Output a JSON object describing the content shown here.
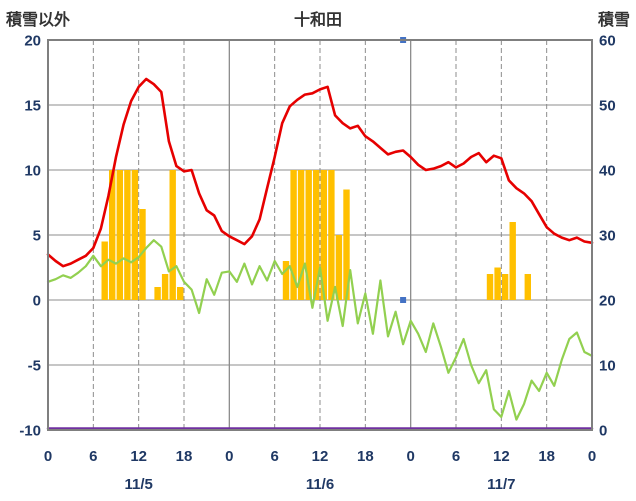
{
  "header": {
    "left_label": "積雪以外",
    "title": "十和田",
    "right_label": "積雪"
  },
  "chart_data": {
    "type": "line+bar",
    "title": "十和田",
    "grid": true,
    "style": {
      "grid_color": "#8c8c8c",
      "border_color": "#7f7f7f",
      "tick_color": "#1f3864",
      "background": "#ffffff"
    },
    "left_axis": {
      "label": "積雪以外",
      "min": -10,
      "max": 20,
      "ticks": [
        20,
        15,
        10,
        5,
        0,
        -5,
        -10
      ]
    },
    "right_axis": {
      "label": "積雪",
      "min": 0,
      "max": 60,
      "ticks": [
        60,
        50,
        40,
        30,
        20,
        10,
        0
      ]
    },
    "x_axis": {
      "unit": "hour",
      "range_hours": [
        0,
        72
      ],
      "tick_hours": [
        0,
        6,
        12,
        18,
        24,
        30,
        36,
        42,
        48,
        54,
        60,
        66,
        72
      ],
      "tick_labels": [
        "0",
        "6",
        "12",
        "18",
        "0",
        "6",
        "12",
        "18",
        "0",
        "6",
        "12",
        "18",
        "0"
      ],
      "date_labels": [
        {
          "label": "11/5",
          "hour": 12
        },
        {
          "label": "11/6",
          "hour": 36
        },
        {
          "label": "11/7",
          "hour": 60
        }
      ]
    },
    "series": [
      {
        "name": "precipitation_bars",
        "type": "bar",
        "axis": "left",
        "color": "#ffc000",
        "values": [
          0,
          0,
          0,
          0,
          0,
          0,
          0,
          4.5,
          10,
          10,
          10,
          10,
          7,
          0,
          1,
          2,
          10,
          1,
          0,
          0,
          0,
          0,
          0,
          0,
          0,
          0,
          0,
          0,
          0,
          0,
          0,
          3,
          10,
          10,
          10,
          10,
          10,
          10,
          5,
          8.5,
          0,
          0,
          0,
          0,
          0,
          0,
          0,
          0,
          0,
          0,
          0,
          0,
          0,
          0,
          0,
          0,
          0,
          0,
          2,
          2.5,
          2,
          6,
          0,
          2,
          0,
          0,
          0,
          0,
          0,
          0,
          0,
          0
        ]
      },
      {
        "name": "temperature_line",
        "type": "line",
        "axis": "left",
        "color": "#e60000",
        "width": 2.6,
        "values": [
          3.5,
          3.0,
          2.6,
          2.8,
          3.1,
          3.4,
          4.0,
          5.5,
          8.0,
          11.0,
          13.5,
          15.3,
          16.4,
          17.0,
          16.6,
          16.0,
          12.2,
          10.3,
          9.9,
          10.0,
          8.2,
          6.9,
          6.5,
          5.3,
          4.9,
          4.6,
          4.3,
          4.9,
          6.2,
          8.6,
          11.0,
          13.6,
          14.9,
          15.4,
          15.8,
          15.9,
          16.2,
          16.4,
          14.2,
          13.6,
          13.2,
          13.4,
          12.6,
          12.2,
          11.7,
          11.2,
          11.4,
          11.5,
          11.0,
          10.4,
          10.0,
          10.1,
          10.3,
          10.6,
          10.2,
          10.5,
          11.0,
          11.3,
          10.6,
          11.1,
          10.9,
          9.2,
          8.6,
          8.2,
          7.6,
          6.6,
          5.6,
          5.1,
          4.8,
          4.6,
          4.8,
          4.5,
          4.4
        ]
      },
      {
        "name": "green_line",
        "type": "line",
        "axis": "left",
        "color": "#92d050",
        "width": 2.2,
        "values": [
          1.4,
          1.6,
          1.9,
          1.7,
          2.1,
          2.6,
          3.4,
          2.6,
          3.1,
          2.8,
          3.2,
          2.9,
          3.3,
          4.0,
          4.6,
          4.1,
          2.2,
          2.6,
          1.4,
          0.8,
          -1.0,
          1.6,
          0.4,
          2.1,
          2.2,
          1.4,
          2.8,
          1.2,
          2.6,
          1.5,
          3.0,
          2.0,
          2.6,
          1.0,
          2.8,
          -0.6,
          2.5,
          -1.6,
          1.0,
          -2.0,
          2.3,
          -1.8,
          0.5,
          -2.6,
          1.5,
          -2.8,
          -0.9,
          -3.4,
          -1.6,
          -2.6,
          -4.0,
          -1.8,
          -3.6,
          -5.6,
          -4.4,
          -3.0,
          -5.0,
          -6.4,
          -5.4,
          -8.4,
          -9.0,
          -7.0,
          -9.2,
          -8.0,
          -6.2,
          -7.0,
          -5.6,
          -6.6,
          -4.6,
          -3.0,
          -2.5,
          -4.0,
          -4.3
        ]
      },
      {
        "name": "snow_depth_line",
        "type": "line",
        "axis": "right",
        "color": "#7030a0",
        "width": 2.5,
        "values": [
          0,
          0,
          0,
          0,
          0,
          0,
          0,
          0,
          0,
          0,
          0,
          0,
          0,
          0,
          0,
          0,
          0,
          0,
          0,
          0,
          0,
          0,
          0,
          0,
          0,
          0,
          0,
          0,
          0,
          0,
          0,
          0,
          0,
          0,
          0,
          0,
          0,
          0,
          0,
          0,
          0,
          0,
          0,
          0,
          0,
          0,
          0,
          0,
          0,
          0,
          0,
          0,
          0,
          0,
          0,
          0,
          0,
          0,
          0,
          0,
          0,
          0,
          0,
          0,
          0,
          0,
          0,
          0,
          0,
          0,
          0,
          0,
          0
        ]
      }
    ],
    "markers": [
      {
        "name": "blue_marker_zero",
        "color": "#4472c4",
        "hour": 47,
        "value": 0
      },
      {
        "name": "blue_marker_top",
        "color": "#4472c4",
        "hour": 47,
        "value": 20
      }
    ]
  }
}
